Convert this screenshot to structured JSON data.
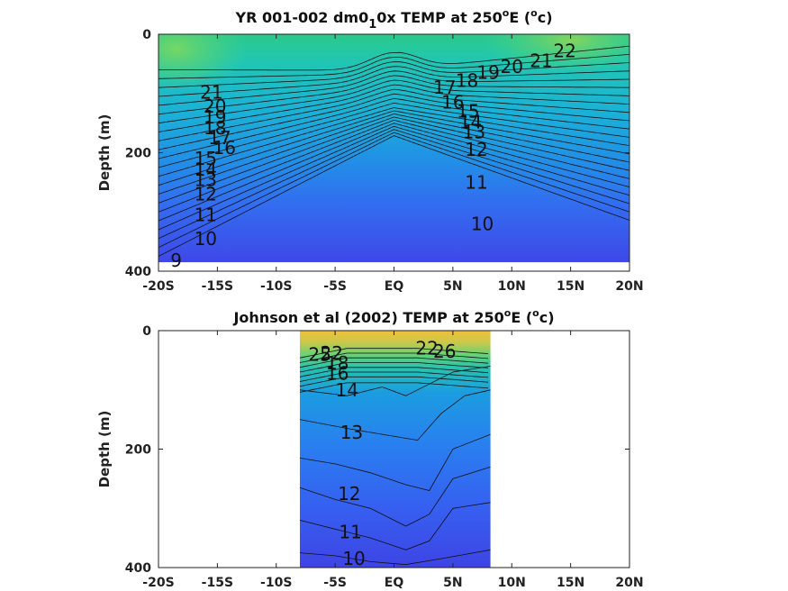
{
  "chart_data": [
    {
      "type": "contour",
      "title": "YR 001-002 dm0",
      "title_sub": "1",
      "title_tail": "0x TEMP at 250",
      "title_sup1": "o",
      "title_mid": "E (",
      "title_sup2": "o",
      "title_end": "c)",
      "xlabel": "",
      "ylabel": "Depth (m)",
      "xlim": [
        -20,
        20
      ],
      "ylim": [
        400,
        0
      ],
      "x_ticks": [
        {
          "v": -20,
          "label": "-20S"
        },
        {
          "v": -15,
          "label": "-15S"
        },
        {
          "v": -10,
          "label": "-10S"
        },
        {
          "v": -5,
          "label": "-5S"
        },
        {
          "v": 0,
          "label": "EQ"
        },
        {
          "v": 5,
          "label": "5N"
        },
        {
          "v": 10,
          "label": "10N"
        },
        {
          "v": 15,
          "label": "15N"
        },
        {
          "v": 20,
          "label": "20N"
        }
      ],
      "y_ticks": [
        {
          "v": 0,
          "label": "0"
        },
        {
          "v": 200,
          "label": "200"
        },
        {
          "v": 400,
          "label": "400"
        }
      ],
      "data_extent": {
        "lon": [
          -20,
          20
        ],
        "depth": [
          0,
          385
        ]
      },
      "colormap": [
        "#3a2fe0",
        "#3b5df0",
        "#1b96e6",
        "#15c2c2",
        "#3fd37e",
        "#b8ce43",
        "#f2c232"
      ],
      "color_range": [
        8,
        28
      ],
      "contour_labels": [
        {
          "value": "21",
          "lon": -15.5,
          "depth": 98
        },
        {
          "value": "20",
          "lon": -15.2,
          "depth": 122
        },
        {
          "value": "19",
          "lon": -15.2,
          "depth": 140
        },
        {
          "value": "18",
          "lon": -15.2,
          "depth": 158
        },
        {
          "value": "17",
          "lon": -14.8,
          "depth": 175
        },
        {
          "value": "16",
          "lon": -14.4,
          "depth": 192
        },
        {
          "value": "15",
          "lon": -16,
          "depth": 210
        },
        {
          "value": "14",
          "lon": -16,
          "depth": 228
        },
        {
          "value": "13",
          "lon": -16,
          "depth": 246
        },
        {
          "value": "12",
          "lon": -16,
          "depth": 270
        },
        {
          "value": "11",
          "lon": -16,
          "depth": 305
        },
        {
          "value": "10",
          "lon": -16,
          "depth": 345
        },
        {
          "value": "9",
          "lon": -18.5,
          "depth": 382
        },
        {
          "value": "22",
          "lon": 14.5,
          "depth": 28
        },
        {
          "value": "21",
          "lon": 12.5,
          "depth": 45
        },
        {
          "value": "20",
          "lon": 10,
          "depth": 55
        },
        {
          "value": "19",
          "lon": 8,
          "depth": 65
        },
        {
          "value": "18",
          "lon": 6.2,
          "depth": 78
        },
        {
          "value": "17",
          "lon": 4.3,
          "depth": 90
        },
        {
          "value": "16",
          "lon": 5,
          "depth": 115
        },
        {
          "value": "15",
          "lon": 6.3,
          "depth": 130
        },
        {
          "value": "14",
          "lon": 6.5,
          "depth": 148
        },
        {
          "value": "13",
          "lon": 6.8,
          "depth": 165
        },
        {
          "value": "12",
          "lon": 7,
          "depth": 195
        },
        {
          "value": "11",
          "lon": 7,
          "depth": 250
        },
        {
          "value": "10",
          "lon": 7.5,
          "depth": 320
        }
      ]
    },
    {
      "type": "contour",
      "title": "Johnson et al (2002) TEMP at 250",
      "title_sup1": "o",
      "title_mid": "E (",
      "title_sup2": "o",
      "title_end": "c)",
      "xlabel": "",
      "ylabel": "Depth (m)",
      "xlim": [
        -20,
        20
      ],
      "ylim": [
        400,
        0
      ],
      "x_ticks": [
        {
          "v": -20,
          "label": "-20S"
        },
        {
          "v": -15,
          "label": "-15S"
        },
        {
          "v": -10,
          "label": "-10S"
        },
        {
          "v": -5,
          "label": "-5S"
        },
        {
          "v": 0,
          "label": "EQ"
        },
        {
          "v": 5,
          "label": "5N"
        },
        {
          "v": 10,
          "label": "10N"
        },
        {
          "v": 15,
          "label": "15N"
        },
        {
          "v": 20,
          "label": "20N"
        }
      ],
      "y_ticks": [
        {
          "v": 0,
          "label": "0"
        },
        {
          "v": 200,
          "label": "200"
        },
        {
          "v": 400,
          "label": "400"
        }
      ],
      "data_extent": {
        "lon": [
          -8,
          8.2
        ],
        "depth": [
          0,
          400
        ]
      },
      "colormap": [
        "#3a2fe0",
        "#3b5df0",
        "#1b96e6",
        "#15c2c2",
        "#3fd37e",
        "#b8ce43",
        "#f2c232"
      ],
      "color_range": [
        8,
        28
      ],
      "contour_labels": [
        {
          "value": "25",
          "lon": -6.3,
          "depth": 40
        },
        {
          "value": "22",
          "lon": -5.3,
          "depth": 38
        },
        {
          "value": "18",
          "lon": -4.8,
          "depth": 55
        },
        {
          "value": "16",
          "lon": -4.8,
          "depth": 72
        },
        {
          "value": "14",
          "lon": -4,
          "depth": 100
        },
        {
          "value": "13",
          "lon": -3.6,
          "depth": 172
        },
        {
          "value": "12",
          "lon": -3.8,
          "depth": 275
        },
        {
          "value": "11",
          "lon": -3.7,
          "depth": 340
        },
        {
          "value": "10",
          "lon": -3.4,
          "depth": 385
        },
        {
          "value": "22",
          "lon": 2.8,
          "depth": 30
        },
        {
          "value": "26",
          "lon": 4.3,
          "depth": 35
        }
      ]
    }
  ]
}
